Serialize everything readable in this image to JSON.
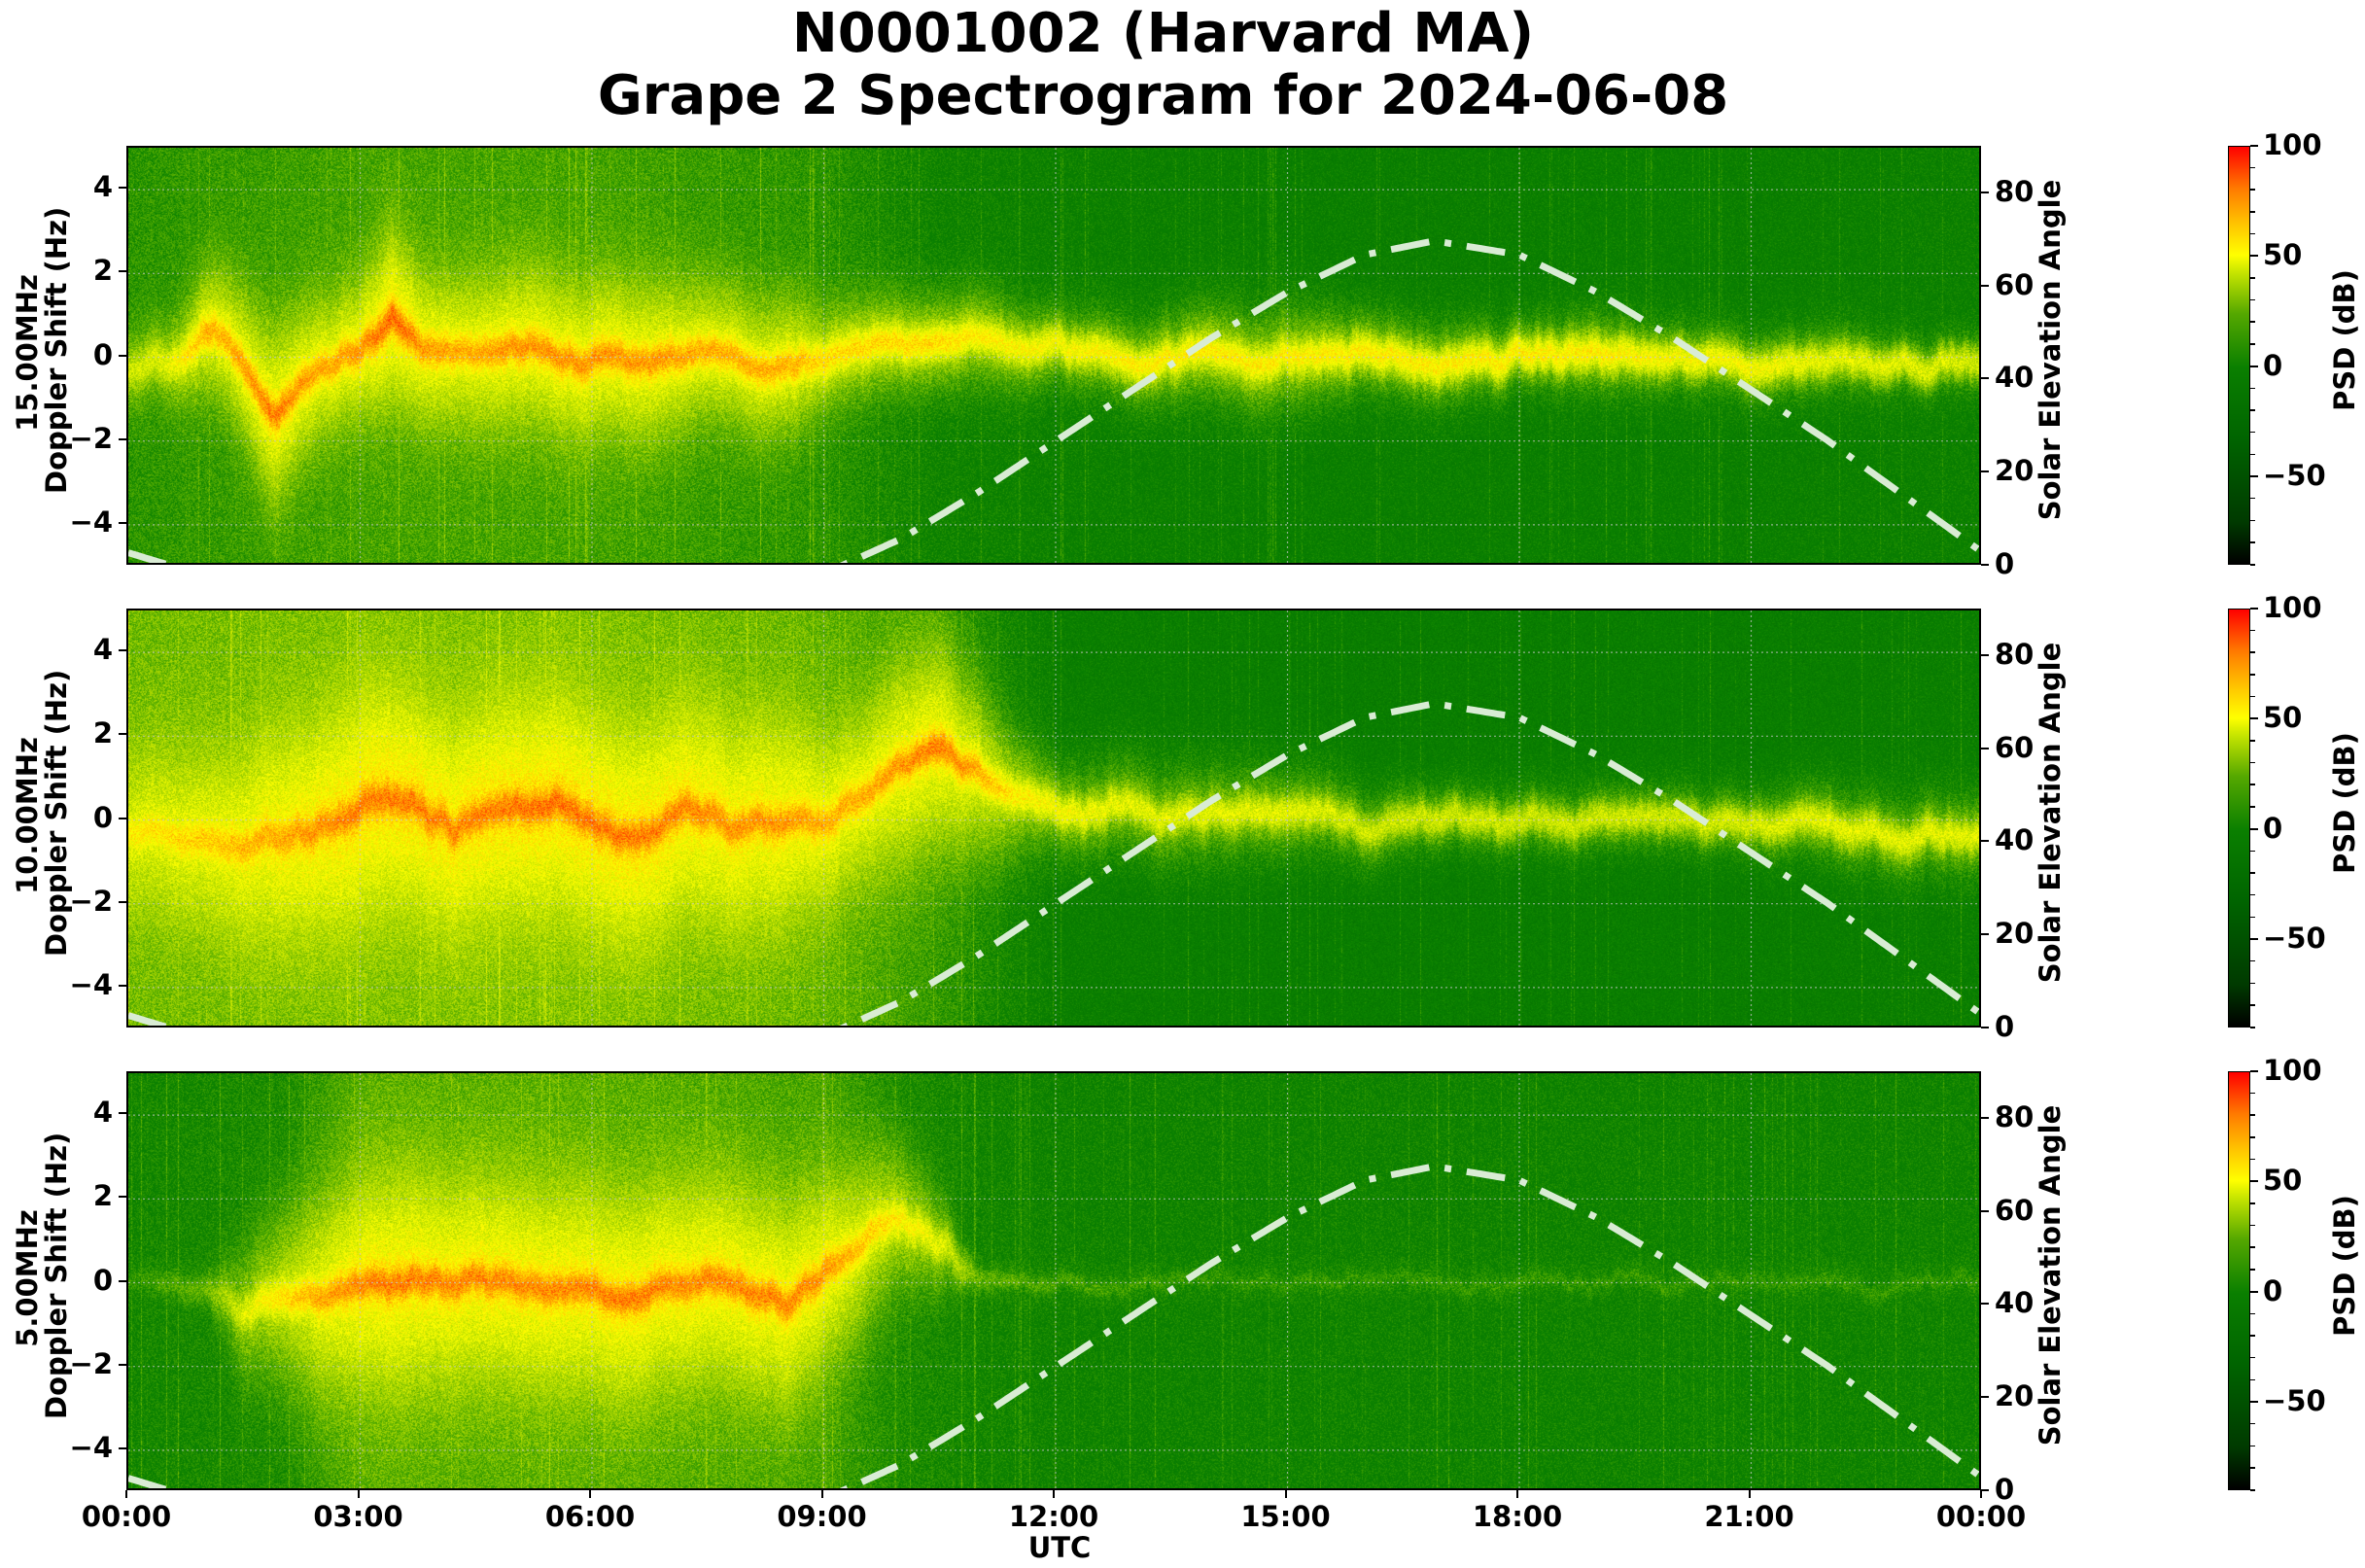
{
  "figure": {
    "title_line1": "N0001002 (Harvard MA)",
    "title_line2": "Grape 2 Spectrogram for 2024-06-08",
    "xlabel": "UTC",
    "xticks": [
      "00:00",
      "03:00",
      "06:00",
      "09:00",
      "12:00",
      "15:00",
      "18:00",
      "21:00",
      "00:00"
    ],
    "colors": {
      "background": "#ffffff",
      "spectrogram_base": "#0a7f00",
      "signal_yellow": "#ffff00",
      "signal_orange": "#ff8c00",
      "signal_red": "#ff2000",
      "solar_curve": "#d9ecd4",
      "grid": "#c8c8c8"
    }
  },
  "panels": [
    {
      "freq_label": "15.00MHz",
      "ylabel": "Doppler Shift (Hz)",
      "ylabel_full": "15.00MHz\nDoppler Shift (Hz)",
      "right_ylabel": "Solar Elevation Angle",
      "yticks": [
        "4",
        "2",
        "0",
        "−2",
        "−4"
      ],
      "right_yticks": [
        "80",
        "60",
        "40",
        "20",
        "0"
      ],
      "colorbar": {
        "label": "PSD (dB)",
        "ticks": [
          "100",
          "50",
          "0",
          "−50"
        ]
      }
    },
    {
      "freq_label": "10.00MHz",
      "ylabel": "Doppler Shift (Hz)",
      "right_ylabel": "Solar Elevation Angle",
      "yticks": [
        "4",
        "2",
        "0",
        "−2",
        "−4"
      ],
      "right_yticks": [
        "80",
        "60",
        "40",
        "20",
        "0"
      ],
      "colorbar": {
        "label": "PSD (dB)",
        "ticks": [
          "100",
          "50",
          "0",
          "−50"
        ]
      }
    },
    {
      "freq_label": "5.00MHz",
      "ylabel": "Doppler Shift (Hz)",
      "right_ylabel": "Solar Elevation Angle",
      "yticks": [
        "4",
        "2",
        "0",
        "−2",
        "−4"
      ],
      "right_yticks": [
        "80",
        "60",
        "40",
        "20",
        "0"
      ],
      "colorbar": {
        "label": "PSD (dB)",
        "ticks": [
          "100",
          "50",
          "0",
          "−50"
        ]
      }
    }
  ],
  "chart_data": [
    {
      "type": "heatmap",
      "title": "N0001002 (Harvard MA) Grape 2 Spectrogram for 2024-06-08",
      "subplot": "15.00MHz",
      "xlabel": "UTC",
      "ylabel": "15.00MHz Doppler Shift (Hz)",
      "y2label": "Solar Elevation Angle",
      "xlim": [
        0,
        24
      ],
      "ylim": [
        -5,
        5
      ],
      "y2lim": [
        0,
        90
      ],
      "clim": [
        -90,
        100
      ],
      "colorbar_label": "PSD (dB)",
      "grid": true,
      "signal_trace": {
        "hours": [
          0,
          0.5,
          1.0,
          1.3,
          1.6,
          1.9,
          2.2,
          2.6,
          3.0,
          3.4,
          3.8,
          4.3,
          5.0,
          5.6,
          6.2,
          6.8,
          7.4,
          8.0,
          8.6,
          9.0,
          10.5,
          11.0,
          12.0,
          13.0,
          14.0,
          15.0,
          16.0,
          17.0,
          18.0,
          19.0,
          20.0,
          21.0,
          22.0,
          23.0,
          24.0
        ],
        "doppler_hz": [
          -0.3,
          -0.2,
          0.5,
          0.3,
          -0.5,
          -1.5,
          -0.8,
          -0.2,
          0.3,
          0.8,
          0.2,
          0.0,
          0.1,
          -0.2,
          0.0,
          -0.3,
          0.1,
          -0.2,
          -0.3,
          -0.2,
          0.6,
          0.4,
          0.2,
          0.0,
          0.1,
          0.0,
          0.1,
          -0.2,
          0.0,
          0.1,
          -0.1,
          -0.2,
          0.0,
          0.0,
          -0.1
        ],
        "intensity_db": [
          40,
          45,
          70,
          70,
          75,
          80,
          75,
          70,
          75,
          85,
          75,
          70,
          75,
          75,
          75,
          75,
          70,
          70,
          70,
          60,
          60,
          55,
          50,
          55,
          55,
          55,
          55,
          55,
          55,
          55,
          50,
          50,
          45,
          45,
          40
        ],
        "spread_hz": [
          1.2,
          1.2,
          1.8,
          2.0,
          2.2,
          2.5,
          2.2,
          2.0,
          2.0,
          2.5,
          2.2,
          2.2,
          2.3,
          2.3,
          2.3,
          2.3,
          2.0,
          2.0,
          2.0,
          1.5,
          1.4,
          1.5,
          1.2,
          1.2,
          1.5,
          1.6,
          1.2,
          1.2,
          1.0,
          1.2,
          1.0,
          1.0,
          1.0,
          0.8,
          0.8
        ]
      },
      "background_db": {
        "hours": [
          0,
          3,
          6,
          9,
          10.5,
          12,
          15,
          18,
          21,
          24
        ],
        "values": [
          8,
          14,
          14,
          8,
          -2,
          -4,
          -6,
          -6,
          -6,
          -4
        ]
      }
    },
    {
      "type": "heatmap",
      "subplot": "10.00MHz",
      "xlabel": "UTC",
      "ylabel": "10.00MHz Doppler Shift (Hz)",
      "y2label": "Solar Elevation Angle",
      "xlim": [
        0,
        24
      ],
      "ylim": [
        -5,
        5
      ],
      "y2lim": [
        0,
        90
      ],
      "clim": [
        -90,
        100
      ],
      "colorbar_label": "PSD (dB)",
      "grid": true,
      "signal_trace": {
        "hours": [
          0,
          0.6,
          1.2,
          1.8,
          2.4,
          3.0,
          3.6,
          4.2,
          4.8,
          5.4,
          6.0,
          6.6,
          7.2,
          7.8,
          8.4,
          9.0,
          9.5,
          10.0,
          10.5,
          11.0,
          11.5,
          12.0,
          13.0,
          14.0,
          15.0,
          16.0,
          17.0,
          18.0,
          19.0,
          20.0,
          21.0,
          22.0,
          23.0,
          24.0
        ],
        "doppler_hz": [
          -0.3,
          -0.5,
          -0.6,
          -0.3,
          -0.2,
          0.3,
          0.5,
          -0.2,
          0.2,
          0.4,
          0.1,
          -0.5,
          0.2,
          -0.2,
          0.0,
          -0.1,
          0.5,
          1.2,
          1.8,
          1.2,
          0.5,
          0.2,
          0.2,
          0.1,
          0.2,
          0.0,
          0.0,
          0.0,
          0.0,
          0.0,
          0.0,
          0.0,
          -0.3,
          -0.4
        ],
        "intensity_db": [
          55,
          60,
          65,
          70,
          75,
          80,
          80,
          78,
          80,
          82,
          80,
          80,
          78,
          75,
          75,
          70,
          70,
          75,
          80,
          70,
          55,
          50,
          45,
          45,
          45,
          40,
          40,
          40,
          40,
          40,
          42,
          45,
          45,
          45
        ],
        "spread_hz": [
          2.5,
          2.5,
          2.5,
          3.0,
          3.0,
          3.2,
          3.0,
          3.0,
          3.0,
          3.0,
          3.0,
          3.0,
          3.0,
          3.0,
          3.0,
          2.5,
          2.5,
          3.0,
          3.0,
          2.5,
          1.8,
          1.4,
          1.5,
          1.5,
          1.4,
          1.2,
          1.0,
          1.0,
          1.0,
          1.0,
          1.0,
          1.2,
          1.2,
          1.2
        ]
      },
      "background_db": {
        "hours": [
          0,
          3,
          6,
          9,
          10.5,
          12,
          15,
          18,
          21,
          24
        ],
        "values": [
          22,
          25,
          25,
          20,
          10,
          -6,
          -8,
          -8,
          -8,
          -6
        ]
      }
    },
    {
      "type": "heatmap",
      "subplot": "5.00MHz",
      "xlabel": "UTC",
      "ylabel": "5.00MHz Doppler Shift (Hz)",
      "y2label": "Solar Elevation Angle",
      "xlim": [
        0,
        24
      ],
      "ylim": [
        -5,
        5
      ],
      "y2lim": [
        0,
        90
      ],
      "clim": [
        -90,
        100
      ],
      "colorbar_label": "PSD (dB)",
      "grid": true,
      "signal_trace": {
        "hours": [
          0,
          1.0,
          1.5,
          2.0,
          2.5,
          3.0,
          3.5,
          4.0,
          4.5,
          5.0,
          5.5,
          6.0,
          6.5,
          7.0,
          7.5,
          8.0,
          8.5,
          9.0,
          9.5,
          10.0,
          10.5,
          11.0,
          12.0,
          14.0,
          16.0,
          18.0,
          20.0,
          22.0,
          24.0
        ],
        "doppler_hz": [
          0.0,
          0.0,
          -0.8,
          -0.4,
          -0.3,
          0.1,
          0.0,
          -0.1,
          0.0,
          0.0,
          0.0,
          -0.1,
          -0.4,
          -0.2,
          0.0,
          0.0,
          -0.4,
          0.3,
          1.0,
          1.5,
          1.0,
          0.0,
          0.0,
          0.0,
          0.0,
          0.0,
          0.0,
          0.0,
          0.0
        ],
        "intensity_db": [
          10,
          20,
          45,
          60,
          72,
          78,
          80,
          78,
          78,
          78,
          78,
          78,
          80,
          78,
          78,
          78,
          78,
          75,
          65,
          55,
          45,
          20,
          15,
          10,
          10,
          10,
          10,
          10,
          10
        ],
        "spread_hz": [
          0.2,
          0.5,
          2.0,
          2.5,
          3.0,
          3.0,
          3.2,
          3.0,
          3.0,
          3.0,
          3.0,
          3.0,
          3.0,
          3.0,
          3.0,
          3.0,
          3.0,
          2.8,
          2.5,
          2.0,
          1.5,
          0.3,
          0.2,
          0.2,
          0.2,
          0.2,
          0.2,
          0.2,
          0.2
        ]
      },
      "background_db": {
        "hours": [
          0,
          2,
          3,
          6,
          9,
          10,
          11,
          12,
          15,
          18,
          21,
          24
        ],
        "values": [
          0,
          4,
          18,
          18,
          14,
          4,
          0,
          -2,
          -2,
          -2,
          -2,
          -2
        ]
      }
    }
  ],
  "solar_elevation": {
    "type": "line",
    "style": "dash-dot",
    "hours": [
      0,
      1,
      2,
      3,
      4,
      5,
      6,
      7,
      8,
      9,
      9.2,
      10,
      11,
      12,
      13,
      14,
      15,
      16,
      16.9,
      18,
      19,
      20,
      21,
      22,
      23,
      24
    ],
    "degrees": [
      3,
      -2,
      -8,
      -14,
      -18,
      -20,
      -19,
      -15,
      -9,
      -1.5,
      0,
      6,
      16,
      27,
      38,
      49,
      59,
      67,
      70,
      67,
      59,
      49,
      38,
      27,
      15,
      3
    ]
  }
}
